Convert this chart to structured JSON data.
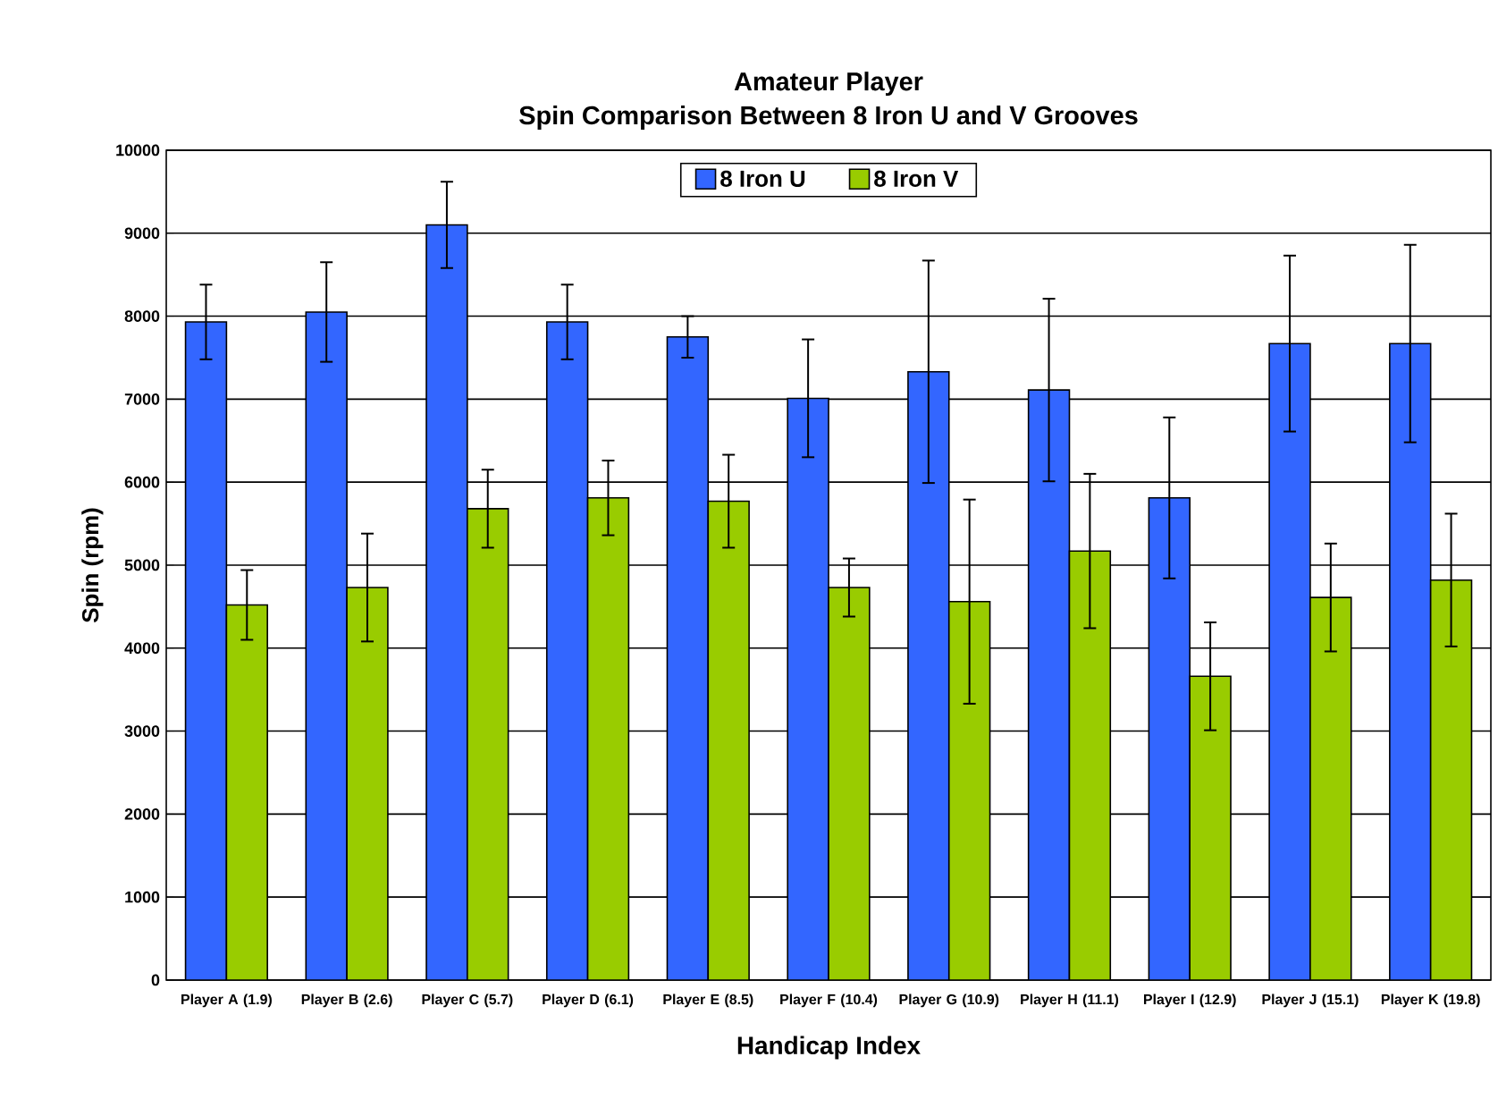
{
  "chart_data": {
    "type": "bar",
    "title": "Amateur Player",
    "subtitle": "Spin Comparison Between 8 Iron U and V Grooves",
    "xlabel": "Handicap Index",
    "ylabel": "Spin (rpm)",
    "categories": [
      "Player A (1.9)",
      "Player B (2.6)",
      "Player C (5.7)",
      "Player D (6.1)",
      "Player E (8.5)",
      "Player F (10.4)",
      "Player G (10.9)",
      "Player H (11.1)",
      "Player I (12.9)",
      "Player J (15.1)",
      "Player K (19.8)"
    ],
    "series": [
      {
        "name": "8 Iron U",
        "color": "#3366ff",
        "values": [
          7930,
          8050,
          9100,
          7930,
          7750,
          7010,
          7330,
          7110,
          5810,
          7670,
          7670
        ],
        "errors": [
          450,
          600,
          520,
          450,
          250,
          710,
          1340,
          1100,
          970,
          1060,
          1190
        ]
      },
      {
        "name": "8 Iron V",
        "color": "#99cc00",
        "values": [
          4520,
          4730,
          5680,
          5810,
          5770,
          4730,
          4560,
          5170,
          3660,
          4610,
          4820
        ],
        "errors": [
          420,
          650,
          470,
          450,
          560,
          350,
          1230,
          930,
          650,
          650,
          800
        ]
      }
    ],
    "ylim": [
      0,
      10000
    ],
    "yticks": [
      0,
      1000,
      2000,
      3000,
      4000,
      5000,
      6000,
      7000,
      8000,
      9000,
      10000
    ],
    "grid": "y",
    "legend": "top"
  }
}
